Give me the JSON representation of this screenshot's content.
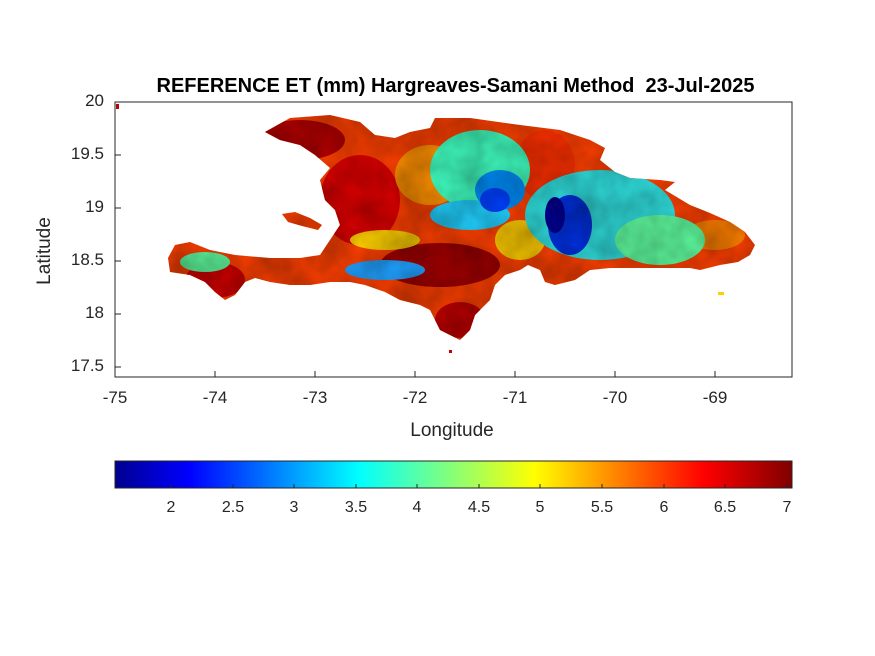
{
  "title": "REFERENCE ET (mm) Hargreaves-Samani Method  23-Jul-2025",
  "axes": {
    "xlabel": "Longitude",
    "ylabel": "Latitude",
    "xticks": [
      "-75",
      "-74",
      "-73",
      "-72",
      "-71",
      "-70",
      "-69"
    ],
    "yticks": [
      "20",
      "19.5",
      "19",
      "18.5",
      "18",
      "17.5"
    ],
    "xlim": [
      -75,
      -68.22
    ],
    "ylim": [
      17.4,
      20
    ]
  },
  "colorbar": {
    "colormap": "jet",
    "range": [
      1.4,
      7
    ],
    "ticks": [
      "2",
      "2.5",
      "3",
      "3.5",
      "4",
      "4.5",
      "5",
      "5.5",
      "6",
      "6.5",
      "7"
    ],
    "position": "bottom"
  },
  "map": {
    "region": "Hispaniola (Haiti and Dominican Republic)",
    "variable": "Reference evapotranspiration",
    "units": "mm"
  }
}
